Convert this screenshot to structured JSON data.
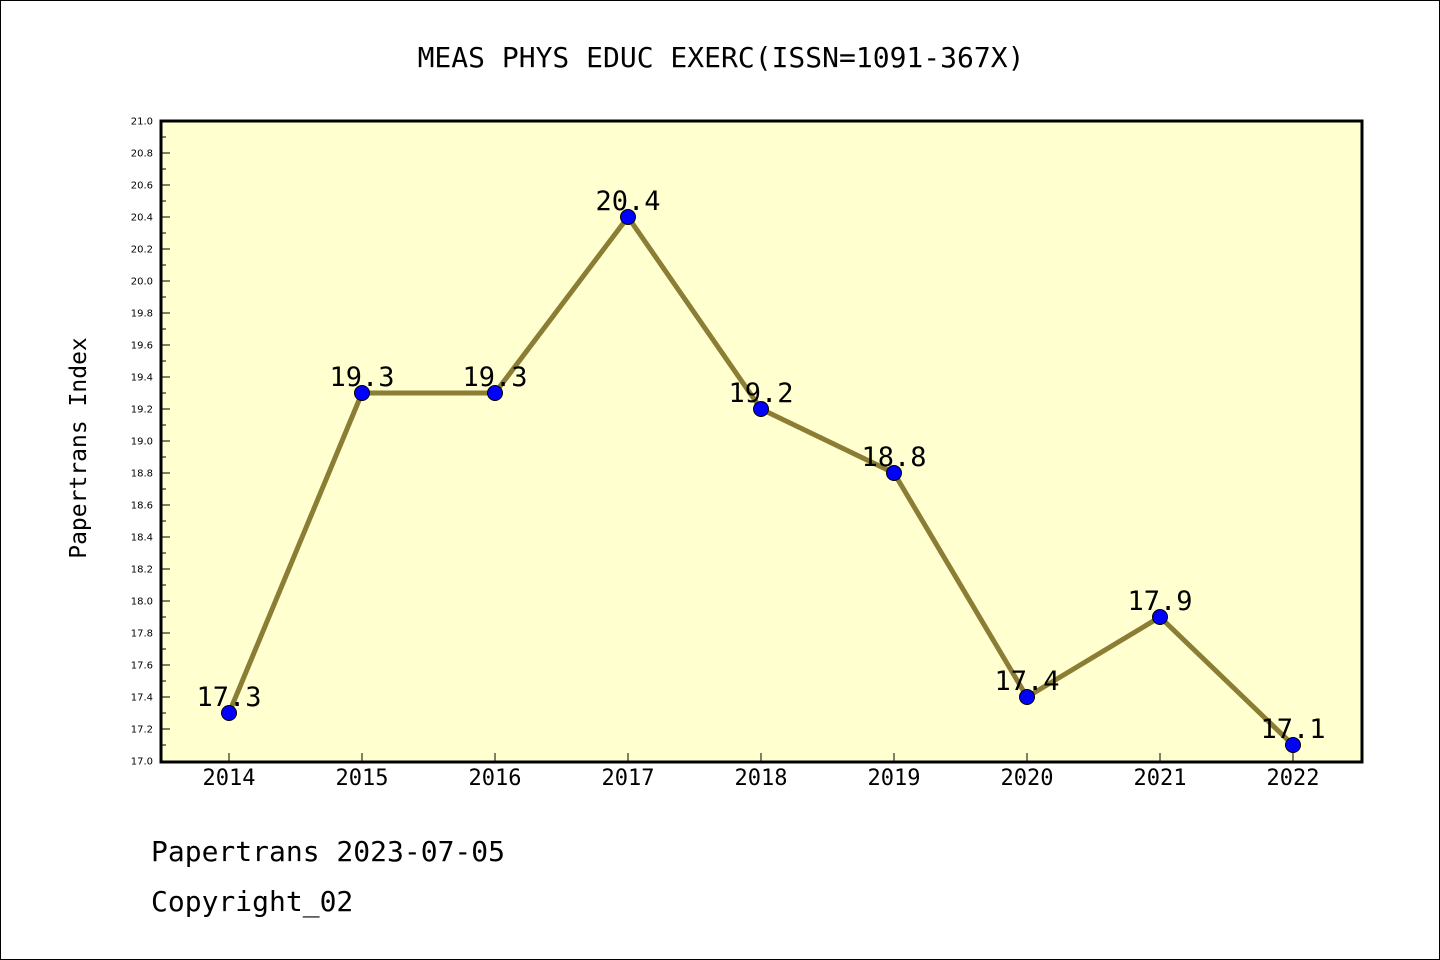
{
  "chart_data": {
    "type": "line",
    "title": "MEAS PHYS EDUC EXERC(ISSN=1091-367X)",
    "xlabel": "",
    "ylabel": "Papertrans Index",
    "categories": [
      "2014",
      "2015",
      "2016",
      "2017",
      "2018",
      "2019",
      "2020",
      "2021",
      "2022"
    ],
    "series": [
      {
        "values": [
          17.3,
          19.3,
          19.3,
          20.4,
          19.2,
          18.8,
          17.4,
          17.9,
          17.1
        ]
      }
    ],
    "data_labels": [
      "17.3",
      "19.3",
      "19.3",
      "20.4",
      "19.2",
      "18.8",
      "17.4",
      "17.9",
      "17.1"
    ],
    "ylim": [
      17.0,
      21.0
    ],
    "ytick_labels": [
      "17.0",
      "17.2",
      "17.4",
      "17.6",
      "17.8",
      "18.0",
      "18.2",
      "18.4",
      "18.6",
      "18.8",
      "19.0",
      "19.2",
      "19.4",
      "19.6",
      "19.8",
      "20.0",
      "20.2",
      "20.4",
      "20.6",
      "20.8",
      "21.0"
    ],
    "grid": false,
    "colors": {
      "plot_background": "#ffffd0",
      "line": "#8b7e34",
      "marker": "#0000ff"
    }
  },
  "footer": {
    "line1": "Papertrans 2023-07-05",
    "line2": "Copyright_02"
  }
}
